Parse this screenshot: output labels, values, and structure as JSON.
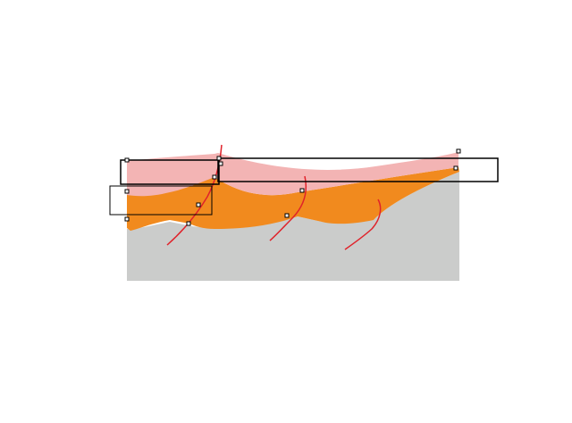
{
  "diagram": {
    "description_visible_text": "",
    "colors": {
      "background": "#ffffff",
      "basement": "#cbcccb",
      "lower_layer": "#f18a1e",
      "upper_layer": "#f3b4b4",
      "faults": "#e0222a",
      "frames": "#000000",
      "handles": "#000000"
    },
    "layers": [
      {
        "id": "basement",
        "color_key": "basement"
      },
      {
        "id": "lower_layer",
        "color_key": "lower_layer"
      },
      {
        "id": "upper_layer",
        "color_key": "upper_layer"
      }
    ],
    "faults": [
      {
        "id": "fault-1"
      },
      {
        "id": "fault-2"
      },
      {
        "id": "fault-3"
      }
    ],
    "selection_boxes": [
      {
        "id": "box-left-lower"
      },
      {
        "id": "box-left-upper"
      },
      {
        "id": "box-right-upper"
      }
    ],
    "handles_count": 12
  }
}
